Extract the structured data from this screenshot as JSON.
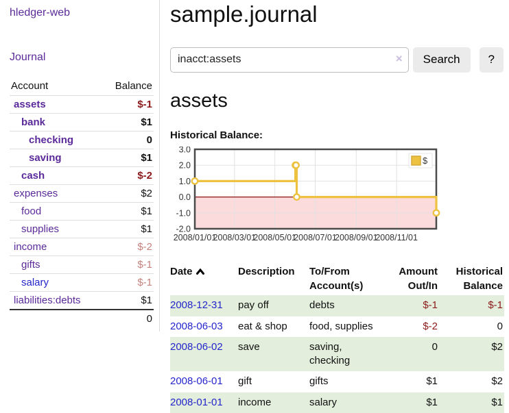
{
  "colors": {
    "link_purple": "#5b2a9a",
    "link_blue": "#2525cc",
    "negative_strong": "#8c1a1a",
    "negative_soft": "#c4827d",
    "row_stripe_green": "#e3eedc",
    "series_gold": "#edc240",
    "negative_region_pink": "#fbdbdb",
    "zero_line_red": "#8f1010"
  },
  "sidebar": {
    "app_title": "hledger-web",
    "journal_label": "Journal",
    "accounts_table": {
      "headers": {
        "account": "Account",
        "balance": "Balance"
      },
      "rows": [
        {
          "name": "assets",
          "balance": "$-1",
          "indent": 0,
          "bold": true,
          "link": "purple",
          "balance_class": "neg-strong"
        },
        {
          "name": "bank",
          "balance": "$1",
          "indent": 1,
          "bold": true,
          "link": "purple",
          "balance_class": ""
        },
        {
          "name": "checking",
          "balance": "0",
          "indent": 2,
          "bold": true,
          "link": "purple",
          "balance_class": ""
        },
        {
          "name": "saving",
          "balance": "$1",
          "indent": 2,
          "bold": true,
          "link": "purple",
          "balance_class": ""
        },
        {
          "name": "cash",
          "balance": "$-2",
          "indent": 1,
          "bold": true,
          "link": "purple",
          "balance_class": "neg-strong"
        },
        {
          "name": "expenses",
          "balance": "$2",
          "indent": 0,
          "bold": false,
          "link": "purple",
          "balance_class": ""
        },
        {
          "name": "food",
          "balance": "$1",
          "indent": 1,
          "bold": false,
          "link": "purple",
          "balance_class": ""
        },
        {
          "name": "supplies",
          "balance": "$1",
          "indent": 1,
          "bold": false,
          "link": "purple",
          "balance_class": ""
        },
        {
          "name": "income",
          "balance": "$-2",
          "indent": 0,
          "bold": false,
          "link": "purple",
          "balance_class": "neg-soft"
        },
        {
          "name": "gifts",
          "balance": "$-1",
          "indent": 1,
          "bold": false,
          "link": "purple",
          "balance_class": "neg-soft"
        },
        {
          "name": "salary",
          "balance": "$-1",
          "indent": 1,
          "bold": false,
          "link": "blue",
          "balance_class": "neg-soft"
        },
        {
          "name": "liabilities:debts",
          "balance": "$1",
          "indent": 0,
          "bold": false,
          "link": "purple",
          "balance_class": ""
        }
      ],
      "total": "0"
    }
  },
  "main": {
    "title": "sample.journal",
    "search": {
      "value": "inacct:assets",
      "clear_icon": "×",
      "button_label": "Search",
      "help_label": "?"
    },
    "account_heading": "assets",
    "chart_label": "Historical Balance:"
  },
  "chart_data": {
    "type": "line",
    "title": "Historical Balance:",
    "steps": true,
    "x_range": [
      "2008-01-01",
      "2008-12-31"
    ],
    "ylim": [
      -2,
      3
    ],
    "y_ticks": [
      "3.0",
      "2.0",
      "1.0",
      "0.0",
      "-1.0",
      "-2.0"
    ],
    "x_tick_labels": [
      "2008/01/01",
      "2008/03/01",
      "2008/05/01",
      "2008/07/01",
      "2008/09/01",
      "2008/11/01"
    ],
    "series": [
      {
        "name": "$",
        "color": "#edc240",
        "points": [
          [
            "2008-01-01",
            1
          ],
          [
            "2008-06-01",
            2
          ],
          [
            "2008-06-02",
            2
          ],
          [
            "2008-06-03",
            0
          ],
          [
            "2008-12-31",
            -1
          ]
        ]
      }
    ],
    "legend": {
      "label": "$",
      "position": "top-right"
    },
    "negative_region_shaded": true,
    "grid": true
  },
  "register_table": {
    "headers": {
      "date": "Date",
      "description": "Description",
      "accounts": "To/From Account(s)",
      "amount": "Amount Out/In",
      "balance": "Historical Balance"
    },
    "sort": {
      "column": "date",
      "direction": "ascending"
    },
    "rows": [
      {
        "date": "2008-12-31",
        "description": "pay off",
        "accounts": "debts",
        "amount": "$-1",
        "amount_class": "neg-strong",
        "balance": "$-1",
        "balance_class": "neg-strong",
        "stripe": true
      },
      {
        "date": "2008-06-03",
        "description": "eat & shop",
        "accounts": "food, supplies",
        "amount": "$-2",
        "amount_class": "neg-strong",
        "balance": "0",
        "balance_class": "",
        "stripe": false
      },
      {
        "date": "2008-06-02",
        "description": "save",
        "accounts": "saving, checking",
        "amount": "0",
        "amount_class": "",
        "balance": "$2",
        "balance_class": "",
        "stripe": true
      },
      {
        "date": "2008-06-01",
        "description": "gift",
        "accounts": "gifts",
        "amount": "$1",
        "amount_class": "",
        "balance": "$2",
        "balance_class": "",
        "stripe": false
      },
      {
        "date": "2008-01-01",
        "description": "income",
        "accounts": "salary",
        "amount": "$1",
        "amount_class": "",
        "balance": "$1",
        "balance_class": "",
        "stripe": true
      }
    ]
  }
}
